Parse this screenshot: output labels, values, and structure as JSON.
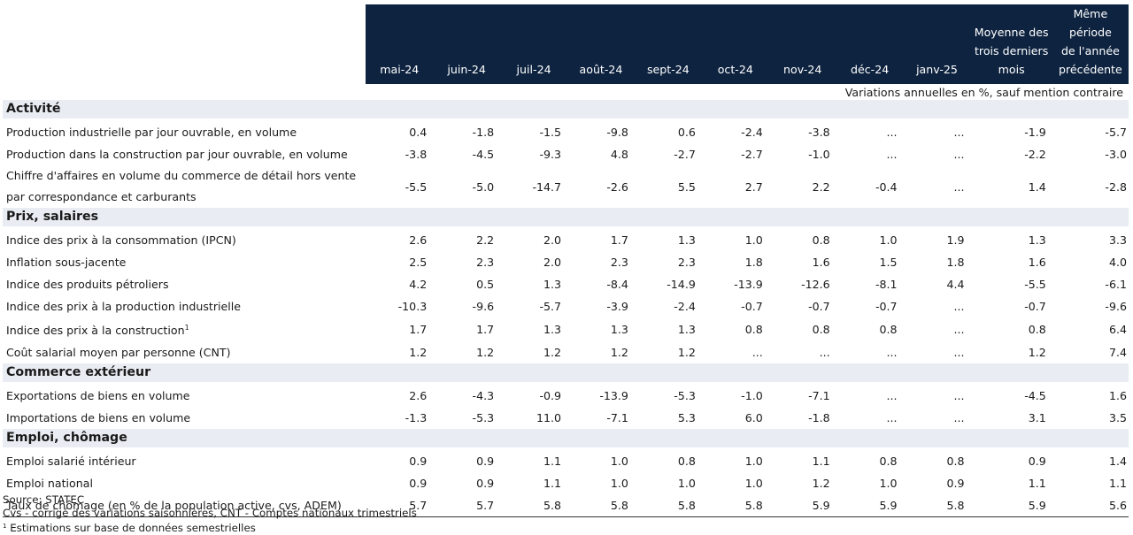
{
  "header": {
    "months": [
      "mai-24",
      "juin-24",
      "juil-24",
      "août-24",
      "sept-24",
      "oct-24",
      "nov-24",
      "déc-24",
      "janv-25"
    ],
    "avg_line1": "Moyenne des",
    "avg_line2": "trois derniers",
    "avg_line3": "mois",
    "prev_line1": "Même période",
    "prev_line2": "de l'année",
    "prev_line3": "précédente"
  },
  "unit_note": "Variations annuelles en %, sauf mention contraire",
  "sections": [
    {
      "title": "Activité",
      "rows": [
        {
          "label": "Production industrielle par jour ouvrable, en volume",
          "values": [
            "0.4",
            "-1.8",
            "-1.5",
            "-9.8",
            "0.6",
            "-2.4",
            "-3.8",
            "...",
            "...",
            "-1.9",
            "-5.7"
          ]
        },
        {
          "label": "Production dans la construction par jour ouvrable, en volume",
          "values": [
            "-3.8",
            "-4.5",
            "-9.3",
            "4.8",
            "-2.7",
            "-2.7",
            "-1.0",
            "...",
            "...",
            "-2.2",
            "-3.0"
          ]
        },
        {
          "label": "Chiffre d'affaires en volume du commerce de détail hors vente par correspondance et carburants",
          "values": [
            "-5.5",
            "-5.0",
            "-14.7",
            "-2.6",
            "5.5",
            "2.7",
            "2.2",
            "-0.4",
            "...",
            "1.4",
            "-2.8"
          ]
        }
      ]
    },
    {
      "title": "Prix, salaires",
      "rows": [
        {
          "label": "Indice des prix à la consommation (IPCN)",
          "values": [
            "2.6",
            "2.2",
            "2.0",
            "1.7",
            "1.3",
            "1.0",
            "0.8",
            "1.0",
            "1.9",
            "1.3",
            "3.3"
          ]
        },
        {
          "label": "Inflation sous-jacente",
          "values": [
            "2.5",
            "2.3",
            "2.0",
            "2.3",
            "2.3",
            "1.8",
            "1.6",
            "1.5",
            "1.8",
            "1.6",
            "4.0"
          ]
        },
        {
          "label": "Indice des produits pétroliers",
          "values": [
            "4.2",
            "0.5",
            "1.3",
            "-8.4",
            "-14.9",
            "-13.9",
            "-12.6",
            "-8.1",
            "4.4",
            "-5.5",
            "-6.1"
          ]
        },
        {
          "label": "Indice des prix à la production industrielle",
          "values": [
            "-10.3",
            "-9.6",
            "-5.7",
            "-3.9",
            "-2.4",
            "-0.7",
            "-0.7",
            "-0.7",
            "...",
            "-0.7",
            "-9.6"
          ]
        },
        {
          "label": "Indice des prix à la construction",
          "sup": "1",
          "values": [
            "1.7",
            "1.7",
            "1.3",
            "1.3",
            "1.3",
            "0.8",
            "0.8",
            "0.8",
            "...",
            "0.8",
            "6.4"
          ]
        },
        {
          "label": "Coût salarial moyen par personne (CNT)",
          "values": [
            "1.2",
            "1.2",
            "1.2",
            "1.2",
            "1.2",
            "...",
            "...",
            "...",
            "...",
            "1.2",
            "7.4"
          ]
        }
      ]
    },
    {
      "title": "Commerce extérieur",
      "rows": [
        {
          "label": "Exportations de biens en volume",
          "values": [
            "2.6",
            "-4.3",
            "-0.9",
            "-13.9",
            "-5.3",
            "-1.0",
            "-7.1",
            "...",
            "...",
            "-4.5",
            "1.6"
          ]
        },
        {
          "label": "Importations de biens en volume",
          "values": [
            "-1.3",
            "-5.3",
            "11.0",
            "-7.1",
            "5.3",
            "6.0",
            "-1.8",
            "...",
            "...",
            "3.1",
            "3.5"
          ]
        }
      ]
    },
    {
      "title": "Emploi, chômage",
      "rows": [
        {
          "label": "Emploi salarié intérieur",
          "values": [
            "0.9",
            "0.9",
            "1.1",
            "1.0",
            "0.8",
            "1.0",
            "1.1",
            "0.8",
            "0.8",
            "0.9",
            "1.4"
          ]
        },
        {
          "label": "Emploi national",
          "values": [
            "0.9",
            "0.9",
            "1.1",
            "1.0",
            "1.0",
            "1.0",
            "1.2",
            "1.0",
            "0.9",
            "1.1",
            "1.1"
          ]
        },
        {
          "label": "Taux de chômage (en % de la population active, cvs, ADEM)",
          "values": [
            "5.7",
            "5.7",
            "5.8",
            "5.8",
            "5.8",
            "5.8",
            "5.9",
            "5.9",
            "5.8",
            "5.9",
            "5.6"
          ]
        }
      ]
    }
  ],
  "footer": {
    "source": "Source: STATEC",
    "abbrev": "Cvs - corrigé des variations saisonnières, CNT - Comptes nationaux trimestriels",
    "note_sup": "1",
    "note": " Estimations sur base de données semestrielles"
  }
}
